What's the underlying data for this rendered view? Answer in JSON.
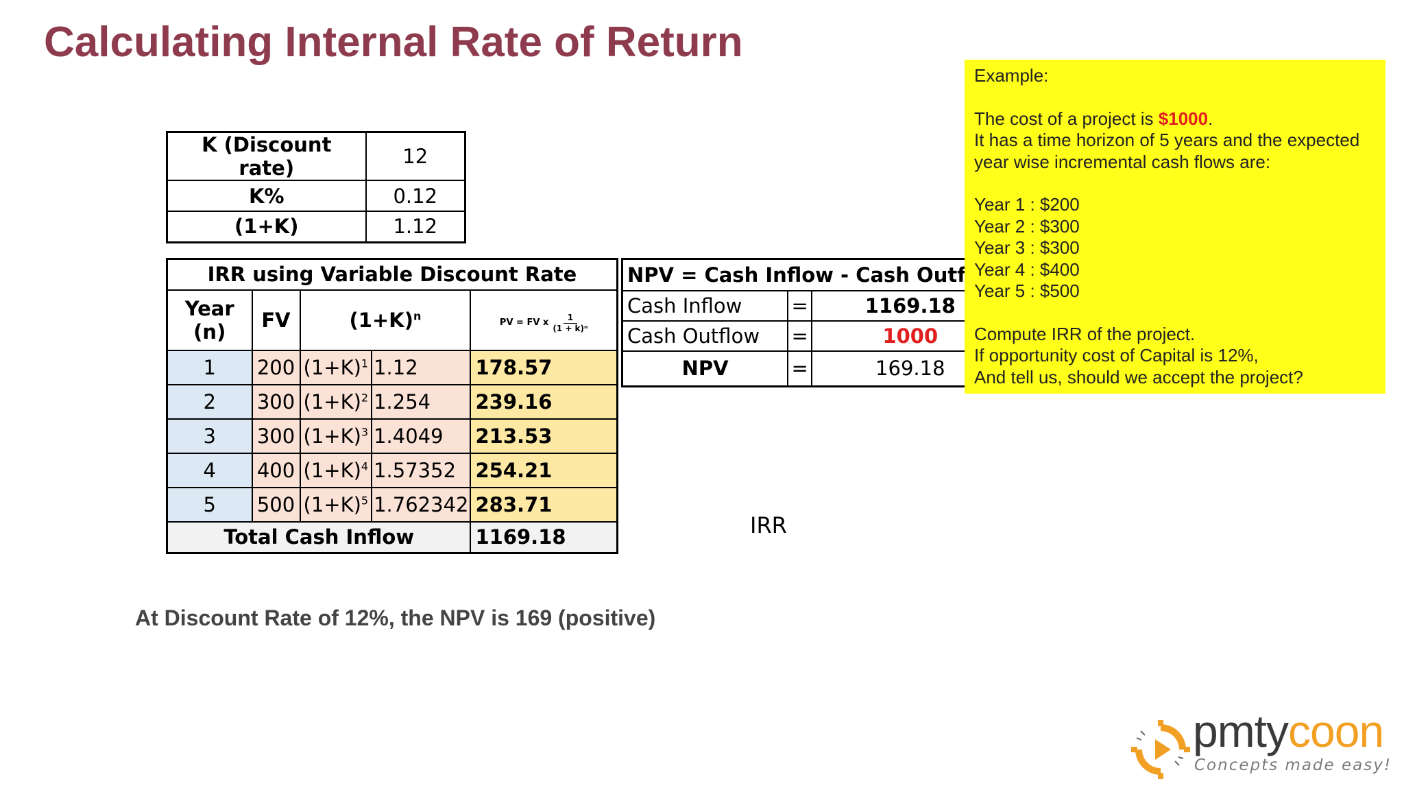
{
  "title": "Calculating Internal Rate of Return",
  "k_table": {
    "rows": [
      {
        "label": "K (Discount rate)",
        "value": "12"
      },
      {
        "label": "K%",
        "value": "0.12"
      },
      {
        "label": "(1+K)",
        "value": "1.12"
      }
    ]
  },
  "irr_table": {
    "title": "IRR using Variable Discount Rate",
    "headers": {
      "year": "Year (n)",
      "fv": "FV",
      "factor_base": "(1+K)",
      "factor_exp": "n",
      "pv_prefix": "PV = FV x",
      "pv_num": "1",
      "pv_den": "(1 + k)ⁿ"
    },
    "rows": [
      {
        "year": "1",
        "fv": "200",
        "pow_base": "(1+K)",
        "pow_exp": "1",
        "factor": "1.12",
        "pv": "178.57"
      },
      {
        "year": "2",
        "fv": "300",
        "pow_base": "(1+K)",
        "pow_exp": "2",
        "factor": "1.254",
        "pv": "239.16"
      },
      {
        "year": "3",
        "fv": "300",
        "pow_base": "(1+K)",
        "pow_exp": "3",
        "factor": "1.4049",
        "pv": "213.53"
      },
      {
        "year": "4",
        "fv": "400",
        "pow_base": "(1+K)",
        "pow_exp": "4",
        "factor": "1.57352",
        "pv": "254.21"
      },
      {
        "year": "5",
        "fv": "500",
        "pow_base": "(1+K)",
        "pow_exp": "5",
        "factor": "1.762342",
        "pv": "283.71"
      }
    ],
    "total_label": "Total Cash Inflow",
    "total_value": "1169.18"
  },
  "npv_table": {
    "title": "NPV = Cash Inflow - Cash Outflow",
    "rows": [
      {
        "label": "Cash Inflow",
        "eq": "=",
        "value": "1169.18"
      },
      {
        "label": "Cash Outflow",
        "eq": "=",
        "value": "1000"
      },
      {
        "label": "NPV",
        "eq": "=",
        "value": "169.18"
      }
    ]
  },
  "example": {
    "heading": "Example:",
    "cost_prefix": "The cost of a project is ",
    "cost_value": "$1000",
    "cost_suffix": ".",
    "line2": "It has a time horizon of 5 years and the expected",
    "line3": "year wise incremental cash flows are:",
    "years": [
      "Year 1 : $200",
      "Year 2 : $300",
      "Year 3 : $300",
      "Year 4 : $400",
      "Year 5 : $500"
    ],
    "q1": "Compute IRR of the project.",
    "q2": "If opportunity cost of Capital is 12%,",
    "q3": "And tell us, should we accept the project?"
  },
  "irr_label": "IRR",
  "conclusion": "At Discount Rate of 12%, the NPV is 169 (positive)",
  "logo": {
    "brand_a": "pmty",
    "brand_b": "c",
    "brand_c": "oo",
    "brand_d": "n",
    "tagline": "Concepts made easy!"
  },
  "colors": {
    "title": "#8e3b4e",
    "highlight": "#ffff1a",
    "red": "#e0201e",
    "year_col": "#dce9f4",
    "calc_col": "#fbe2d7",
    "pv_col": "#fde8a4",
    "logo_orange": "#f2a024"
  }
}
